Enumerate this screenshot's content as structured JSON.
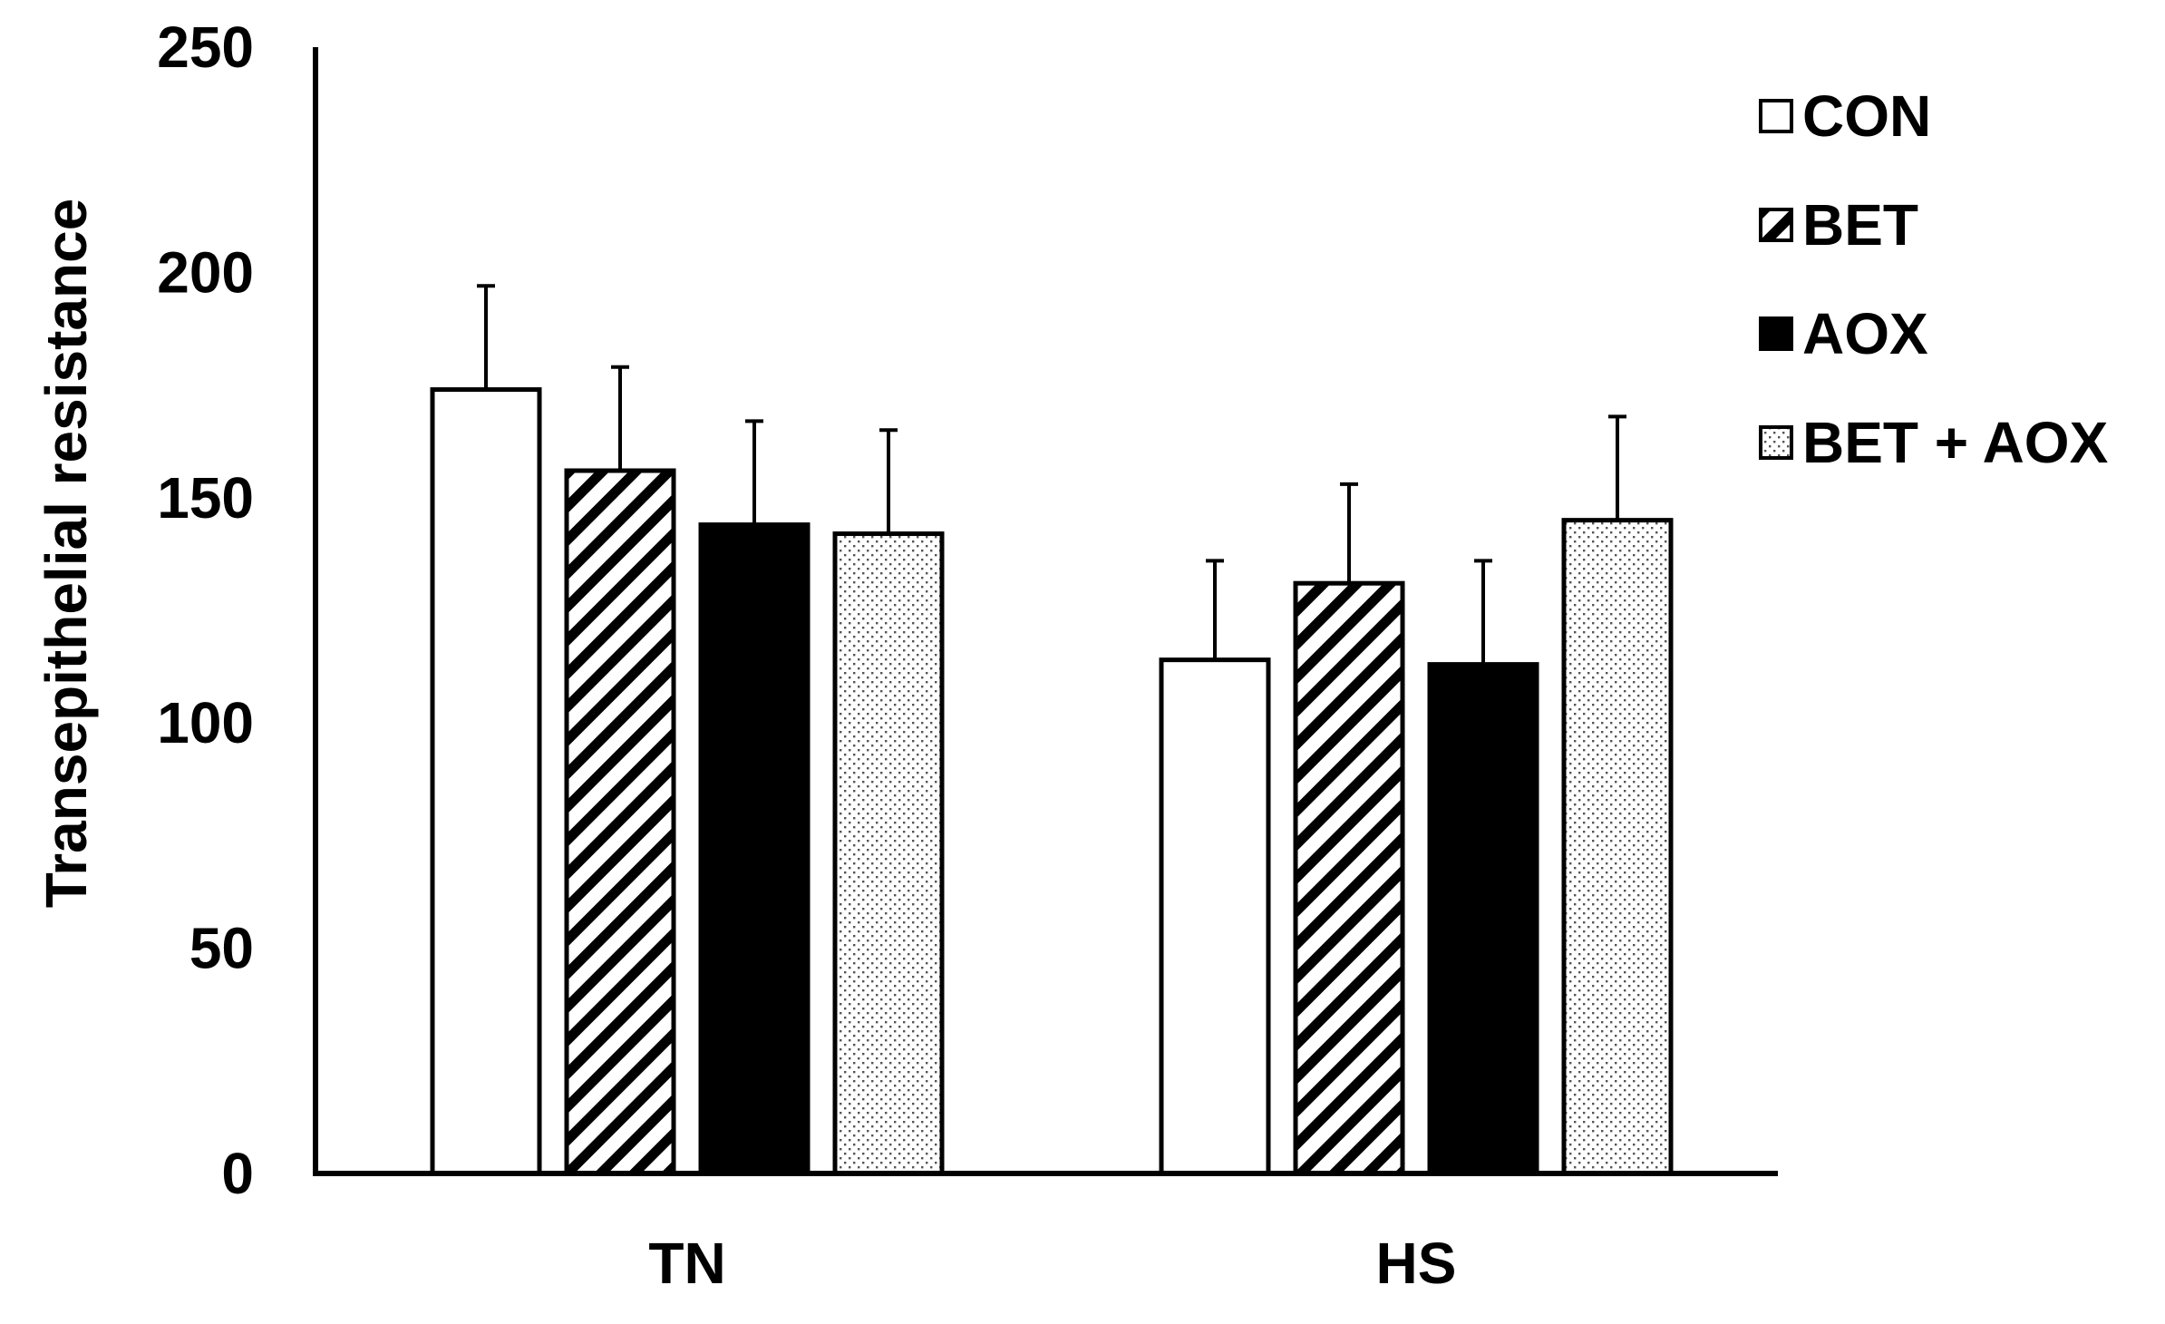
{
  "chart_data": {
    "type": "bar",
    "title": "",
    "xlabel": "",
    "ylabel": "Transepithelial  resistance",
    "ylim": [
      0,
      250
    ],
    "yticks": [
      0,
      50,
      100,
      150,
      200,
      250
    ],
    "grid": false,
    "legend_position": "top-right",
    "categories": [
      "TN",
      "HS"
    ],
    "series": [
      {
        "name": "CON",
        "pattern": "white",
        "values": [
          174,
          114
        ],
        "errors": [
          23,
          22
        ]
      },
      {
        "name": "BET",
        "pattern": "diagonal-hatch",
        "values": [
          156,
          131
        ],
        "errors": [
          23,
          22
        ]
      },
      {
        "name": "AOX",
        "pattern": "solid-black",
        "values": [
          144,
          113
        ],
        "errors": [
          23,
          23
        ]
      },
      {
        "name": "BET + AOX",
        "pattern": "dotted",
        "values": [
          142,
          145
        ],
        "errors": [
          23,
          23
        ]
      }
    ],
    "colors": {
      "stroke": "#000000",
      "fill_white": "#ffffff",
      "fill_black": "#000000"
    }
  }
}
